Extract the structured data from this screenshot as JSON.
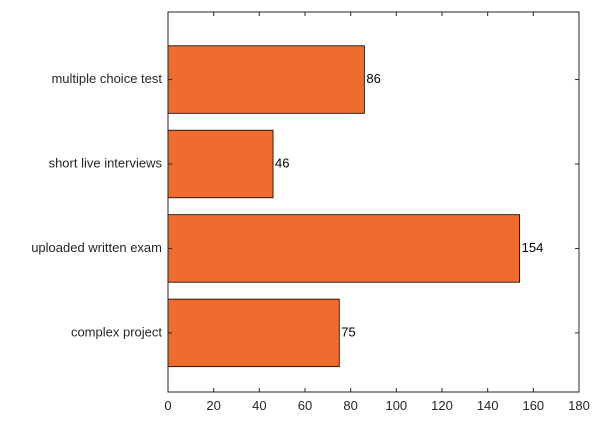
{
  "chart_data": {
    "type": "bar",
    "orientation": "horizontal",
    "categories": [
      "multiple choice test",
      "short live interviews",
      "uploaded written exam",
      "complex project"
    ],
    "values": [
      86,
      46,
      154,
      75
    ],
    "data_labels": [
      "86",
      "46",
      "154",
      "75"
    ],
    "xticks": [
      "0",
      "20",
      "40",
      "60",
      "80",
      "100",
      "120",
      "140",
      "160",
      "180"
    ],
    "xlim": [
      0,
      180
    ],
    "title": "",
    "xlabel": "",
    "ylabel": "",
    "grid": false,
    "bar_color": "#ED6C2E",
    "bar_edge_color": "#000000"
  }
}
